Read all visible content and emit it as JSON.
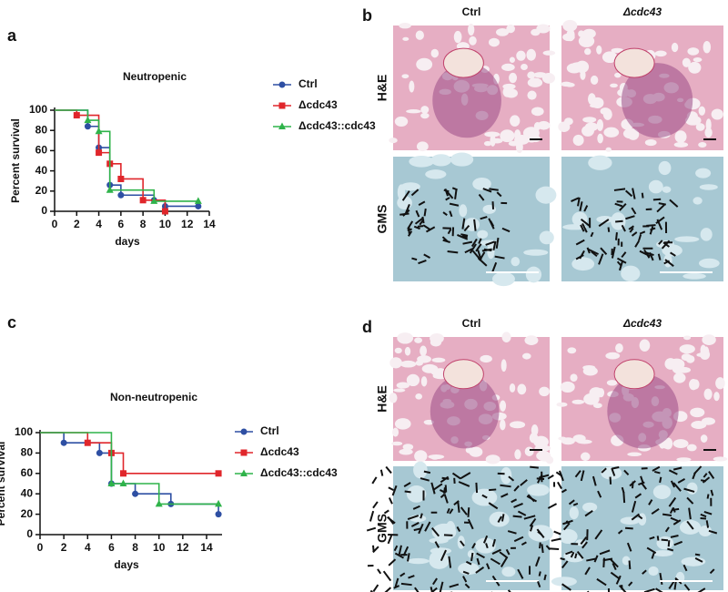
{
  "chart_data": [
    {
      "type": "step",
      "panel_label": "a",
      "title": "Neutropenic",
      "x_label": "days",
      "y_label": "Percent survival",
      "xlim": [
        0,
        14
      ],
      "xticks": [
        0,
        2,
        4,
        6,
        8,
        10,
        12,
        14
      ],
      "ylim": [
        0,
        100
      ],
      "yticks": [
        0,
        20,
        40,
        60,
        80,
        100
      ],
      "series": [
        {
          "name": "Ctrl",
          "color": "#2e4fa3",
          "marker": "circle",
          "x": [
            0,
            3,
            4,
            5,
            6,
            9,
            10,
            13
          ],
          "values": [
            100,
            84,
            63,
            26,
            16,
            11,
            5,
            5
          ]
        },
        {
          "name": "Δcdc43",
          "color": "#e0262b",
          "marker": "square",
          "x": [
            0,
            2,
            4,
            5,
            6,
            8,
            10
          ],
          "values": [
            100,
            95,
            58,
            47,
            32,
            11,
            0
          ]
        },
        {
          "name": "Δcdc43::cdc43",
          "color": "#2fb34a",
          "marker": "triangle",
          "x": [
            0,
            3,
            4,
            5,
            9,
            13
          ],
          "values": [
            100,
            90,
            79,
            21,
            10,
            10
          ]
        }
      ]
    },
    {
      "type": "step",
      "panel_label": "c",
      "title": "Non-neutropenic",
      "x_label": "days",
      "y_label": "Percent survival",
      "xlim": [
        0,
        15.3
      ],
      "xticks": [
        0,
        2,
        4,
        6,
        8,
        10,
        12,
        14
      ],
      "ylim": [
        0,
        100
      ],
      "yticks": [
        0,
        20,
        40,
        60,
        80,
        100
      ],
      "series": [
        {
          "name": "Ctrl",
          "color": "#2e4fa3",
          "marker": "circle",
          "x": [
            0,
            2,
            5,
            6,
            8,
            11,
            15
          ],
          "values": [
            100,
            90,
            80,
            50,
            40,
            30,
            20
          ]
        },
        {
          "name": "Δcdc43",
          "color": "#e0262b",
          "marker": "square",
          "x": [
            0,
            4,
            6,
            7,
            15
          ],
          "values": [
            100,
            90,
            80,
            60,
            60
          ]
        },
        {
          "name": "Δcdc43::cdc43",
          "color": "#2fb34a",
          "marker": "triangle",
          "x": [
            0,
            6,
            7,
            10,
            15
          ],
          "values": [
            100,
            50,
            50,
            30,
            30
          ]
        }
      ]
    }
  ],
  "micrographs": [
    {
      "label": "b",
      "columns": [
        "Ctrl",
        "Δcdc43"
      ],
      "rows": [
        "H&E",
        "GMS"
      ]
    },
    {
      "label": "d",
      "columns": [
        "Ctrl",
        "Δcdc43"
      ],
      "rows": [
        "H&E",
        "GMS"
      ]
    }
  ]
}
